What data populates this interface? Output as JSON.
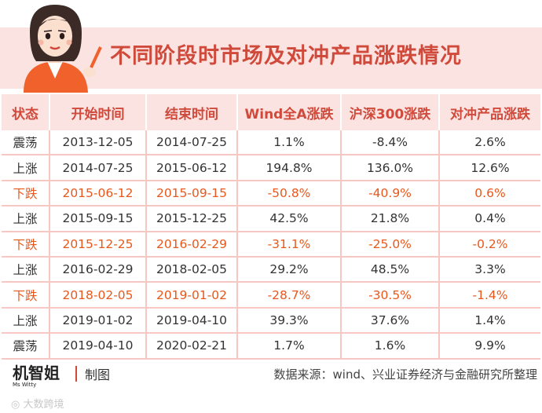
{
  "title": "不同阶段时市场及对冲产品涨跌情况",
  "columns": [
    "状态",
    "开始时间",
    "结束时间",
    "Wind全A涨跌",
    "沪深300涨跌",
    "对冲产品涨跌"
  ],
  "rows": [
    {
      "status": "震荡",
      "start": "2013-12-05",
      "end": "2014-07-25",
      "wind": "1.1%",
      "hs300": "-8.4%",
      "hedge": "2.6%"
    },
    {
      "status": "上涨",
      "start": "2014-07-25",
      "end": "2015-06-12",
      "wind": "194.8%",
      "hs300": "136.0%",
      "hedge": "12.6%"
    },
    {
      "status": "下跌",
      "start": "2015-06-12",
      "end": "2015-09-15",
      "wind": "-50.8%",
      "hs300": "-40.9%",
      "hedge": "0.6%"
    },
    {
      "status": "上涨",
      "start": "2015-09-15",
      "end": "2015-12-25",
      "wind": "42.5%",
      "hs300": "21.8%",
      "hedge": "0.4%"
    },
    {
      "status": "下跌",
      "start": "2015-12-25",
      "end": "2016-02-29",
      "wind": "-31.1%",
      "hs300": "-25.0%",
      "hedge": "-0.2%"
    },
    {
      "status": "上涨",
      "start": "2016-02-29",
      "end": "2018-02-05",
      "wind": "29.2%",
      "hs300": "48.5%",
      "hedge": "3.3%"
    },
    {
      "status": "下跌",
      "start": "2018-02-05",
      "end": "2019-01-02",
      "wind": "-28.7%",
      "hs300": "-30.5%",
      "hedge": "-1.4%"
    },
    {
      "status": "上涨",
      "start": "2019-01-02",
      "end": "2019-04-10",
      "wind": "39.3%",
      "hs300": "37.6%",
      "hedge": "1.4%"
    },
    {
      "status": "震荡",
      "start": "2019-04-10",
      "end": "2020-02-21",
      "wind": "1.7%",
      "hs300": "1.6%",
      "hedge": "9.9%"
    }
  ],
  "footer": {
    "brand": "机智姐",
    "brand_sub": "Ms Witty",
    "made": "制图",
    "source": "数据来源：wind、兴业证券经济与金融研究所整理",
    "watermark": "大数跨境"
  },
  "colors": {
    "accent": "#d04a3c",
    "header_bg": "#fbe3e1",
    "decline_text": "#e8581c",
    "row_border": "#f6c7c3"
  }
}
